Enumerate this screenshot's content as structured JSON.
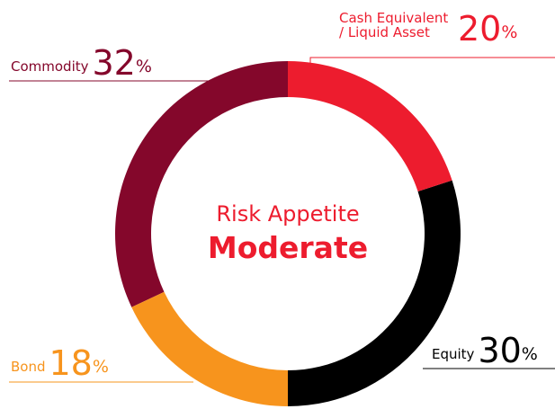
{
  "chart_data": {
    "type": "donut",
    "title": "Risk Appetite",
    "subtitle": "Moderate",
    "categories": [
      "Cash Equivalent / Liquid Asset",
      "Equity",
      "Bond",
      "Commodity"
    ],
    "values": [
      20,
      30,
      18,
      32
    ],
    "unit": "%",
    "colors": [
      "#ed1c2e",
      "#000000",
      "#f7941d",
      "#84072b"
    ]
  }
}
